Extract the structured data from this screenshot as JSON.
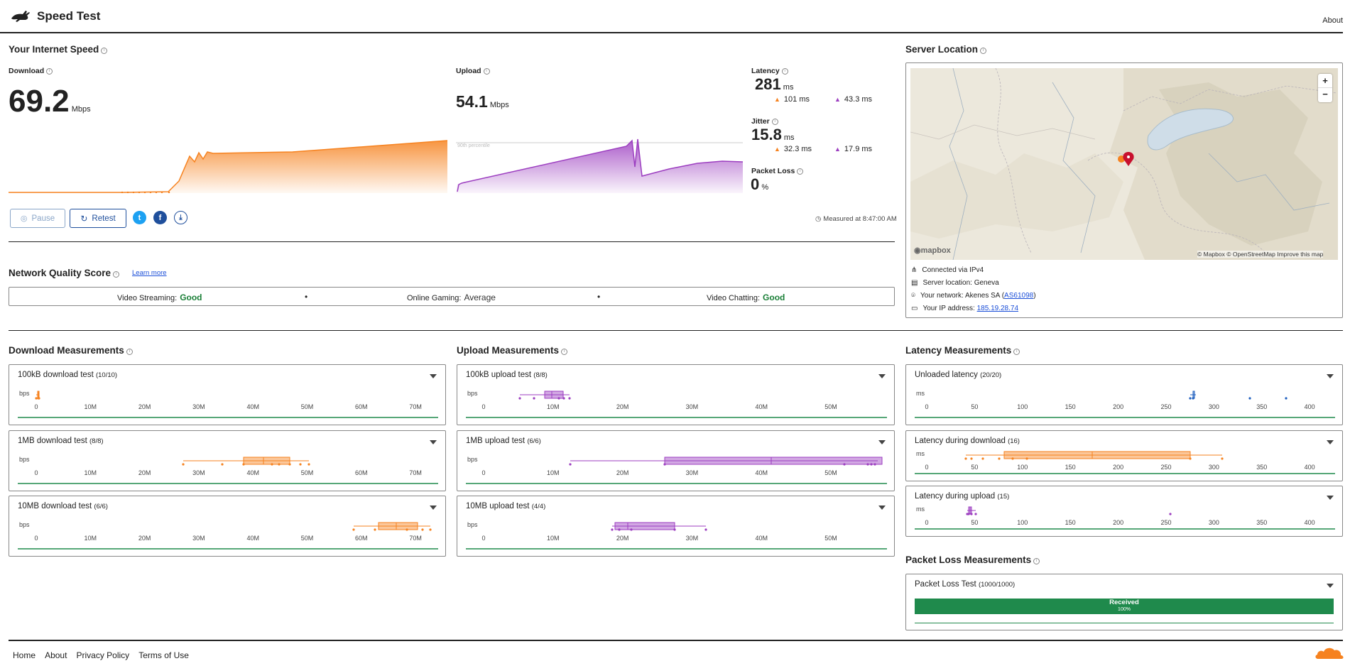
{
  "header": {
    "title": "Speed Test",
    "about": "About"
  },
  "speed": {
    "section_title": "Your Internet Speed",
    "download": {
      "label": "Download",
      "value": "69.2",
      "unit": "Mbps"
    },
    "upload": {
      "label": "Upload",
      "value": "54.1",
      "unit": "Mbps",
      "percentile_label": "90th percentile"
    },
    "latency": {
      "label": "Latency",
      "value": "281",
      "unit": "ms",
      "down": "101 ms",
      "up": "43.3 ms"
    },
    "jitter": {
      "label": "Jitter",
      "value": "15.8",
      "unit": "ms",
      "down": "32.3 ms",
      "up": "17.9 ms"
    },
    "packet_loss": {
      "label": "Packet Loss",
      "value": "0",
      "unit": "%"
    },
    "buttons": {
      "pause": "Pause",
      "retest": "Retest"
    },
    "measured_at": "Measured at 8:47:00 AM"
  },
  "quality": {
    "title": "Network Quality Score",
    "learn_more": "Learn more",
    "items": [
      {
        "label": "Video Streaming:",
        "value": "Good"
      },
      {
        "label": "Online Gaming:",
        "value": "Average"
      },
      {
        "label": "Video Chatting:",
        "value": "Good"
      }
    ]
  },
  "server": {
    "title": "Server Location",
    "map_attribution": "© Mapbox © OpenStreetMap  Improve this map",
    "map_logo": "mapbox",
    "zoom_in": "+",
    "zoom_out": "−",
    "lines": {
      "connected": "Connected via IPv4",
      "location": "Server location: Geneva",
      "network_prefix": "Your network: Akenes SA (",
      "network_asn": "AS61098",
      "network_suffix": ")",
      "ip_prefix": "Your IP address: ",
      "ip": "185.19.28.74"
    }
  },
  "colors": {
    "download": "#f6821f",
    "upload": "#9c3ec0",
    "good": "#1a7f37",
    "latency_blue": "#1f5fbf"
  },
  "download_measurements": {
    "title": "Download Measurements",
    "axis_unit": "bps",
    "ticks": [
      "0",
      "10M",
      "20M",
      "30M",
      "40M",
      "50M",
      "60M",
      "70M"
    ],
    "tests": [
      {
        "name": "100kB download test",
        "count": "(10/10)"
      },
      {
        "name": "1MB download test",
        "count": "(8/8)"
      },
      {
        "name": "10MB download test",
        "count": "(6/6)"
      }
    ]
  },
  "upload_measurements": {
    "title": "Upload Measurements",
    "axis_unit": "bps",
    "ticks": [
      "0",
      "10M",
      "20M",
      "30M",
      "40M",
      "50M"
    ],
    "tests": [
      {
        "name": "100kB upload test",
        "count": "(8/8)"
      },
      {
        "name": "1MB upload test",
        "count": "(6/6)"
      },
      {
        "name": "10MB upload test",
        "count": "(4/4)"
      }
    ]
  },
  "latency_measurements": {
    "title": "Latency Measurements",
    "axis_unit": "ms",
    "ticks": [
      "0",
      "50",
      "100",
      "150",
      "200",
      "250",
      "300",
      "350",
      "400"
    ],
    "tests": [
      {
        "name": "Unloaded latency",
        "count": "(20/20)"
      },
      {
        "name": "Latency during download",
        "count": "(16)"
      },
      {
        "name": "Latency during upload",
        "count": "(15)"
      }
    ]
  },
  "packet_loss_measurements": {
    "title": "Packet Loss Measurements",
    "test_name": "Packet Loss Test",
    "count": "(1000/1000)",
    "bar_label": "Received",
    "bar_pct": "100%"
  },
  "footer": {
    "links": [
      "Home",
      "About",
      "Privacy Policy",
      "Terms of Use"
    ]
  }
}
